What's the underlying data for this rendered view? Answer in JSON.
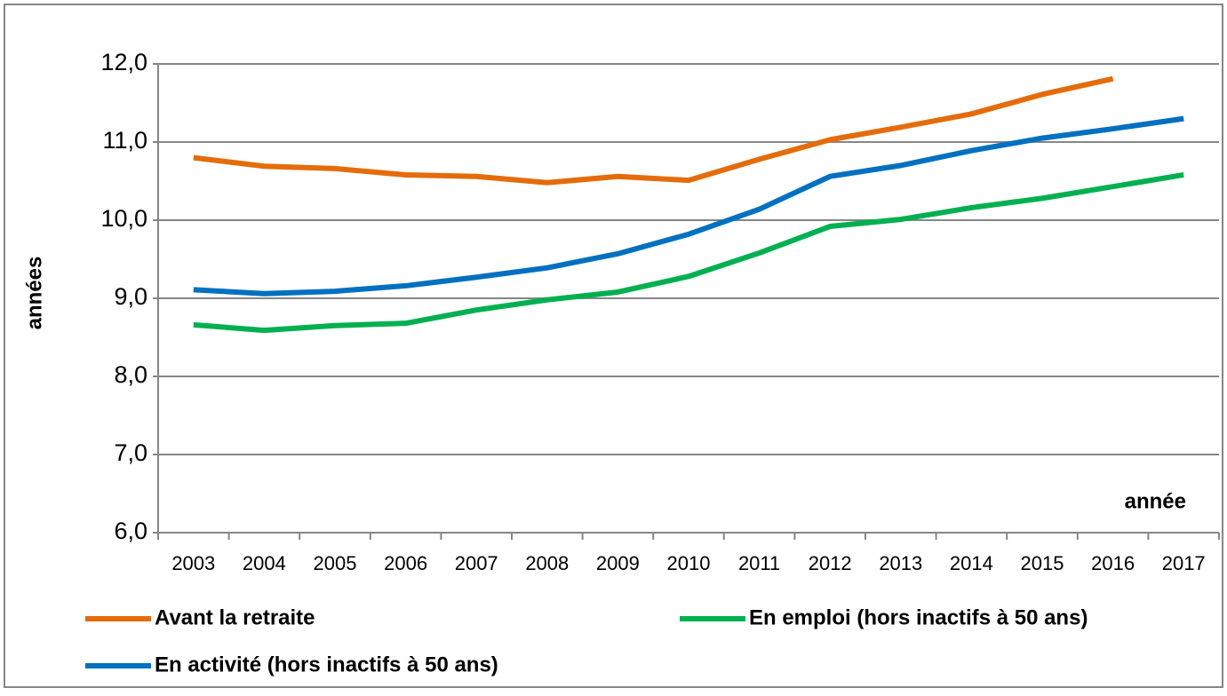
{
  "chart_data": {
    "type": "line",
    "y_label": "années",
    "x_label": "année",
    "categories": [
      "2003",
      "2004",
      "2005",
      "2006",
      "2007",
      "2008",
      "2009",
      "2010",
      "2011",
      "2012",
      "2013",
      "2014",
      "2015",
      "2016",
      "2017"
    ],
    "series": [
      {
        "name": "Avant la retraite",
        "color": "#e46c0a",
        "values": [
          10.8,
          10.69,
          10.66,
          10.58,
          10.56,
          10.48,
          10.56,
          10.51,
          10.78,
          11.03,
          11.19,
          11.36,
          11.61,
          11.81,
          null
        ]
      },
      {
        "name": "En emploi (hors inactifs à 50 ans)",
        "color": "#00b050",
        "values": [
          8.66,
          8.59,
          8.65,
          8.68,
          8.85,
          8.98,
          9.08,
          9.28,
          9.58,
          9.92,
          10.01,
          10.16,
          10.28,
          10.43,
          10.58
        ]
      },
      {
        "name": "En activité (hors inactifs à 50 ans)",
        "color": "#0070c0",
        "values": [
          9.11,
          9.06,
          9.09,
          9.16,
          9.27,
          9.39,
          9.57,
          9.82,
          10.14,
          10.56,
          10.7,
          10.89,
          11.05,
          11.17,
          11.3
        ]
      }
    ],
    "ylim": [
      6,
      12
    ],
    "yticks": [
      {
        "value": 6,
        "label": "6,0"
      },
      {
        "value": 7,
        "label": "7,0"
      },
      {
        "value": 8,
        "label": "8,0"
      },
      {
        "value": 9,
        "label": "9,0"
      },
      {
        "value": 10,
        "label": "10,0"
      },
      {
        "value": 11,
        "label": "11,0"
      },
      {
        "value": 12,
        "label": "12,0"
      }
    ],
    "grid": true
  }
}
